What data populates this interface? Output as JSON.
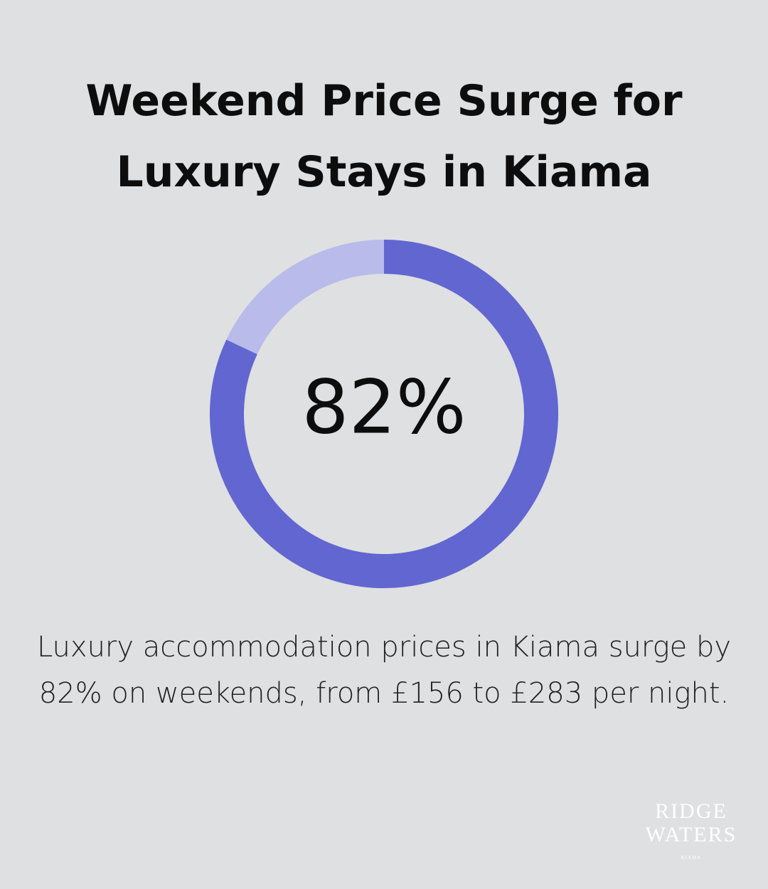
{
  "chart_data": {
    "type": "donut",
    "title": "Weekend Price Surge for Luxury Stays in Kiama",
    "values": [
      82
    ],
    "value_labels": [
      "82%"
    ],
    "color": "#6266d1",
    "track_color": "#b9bbea"
  },
  "caption": "Luxury accommodation prices in Kiama surge by 82% on weekends, from £156 to £283 per night.",
  "logo": {
    "line1": "RIDGE",
    "line2": "WATERS",
    "line3": "KIAMA"
  }
}
